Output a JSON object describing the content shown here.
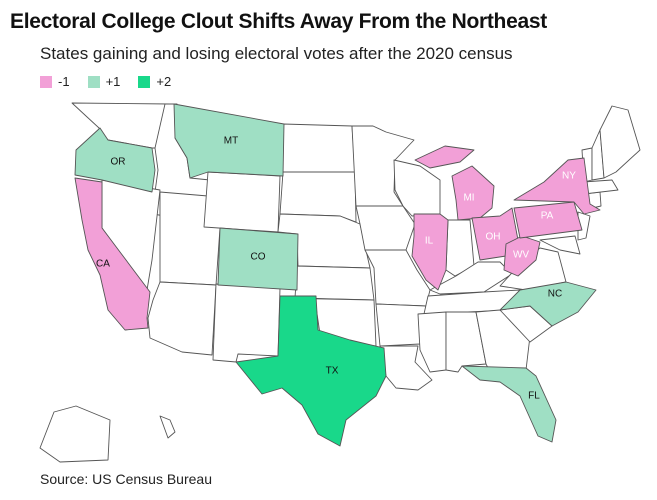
{
  "title": "Electoral College Clout Shifts Away From the Northeast",
  "subtitle": "States gaining and losing electoral votes after the 2020 census",
  "legend": [
    {
      "label": "-1",
      "color": "#f2a0d7"
    },
    {
      "label": "+1",
      "color": "#9fdfc4"
    },
    {
      "label": "+2",
      "color": "#19d88a"
    }
  ],
  "colors": {
    "minus1": "#f2a0d7",
    "plus1": "#9fdfc4",
    "plus2": "#19d88a",
    "neutral": "#ffffff",
    "border": "#555555"
  },
  "states": [
    {
      "abbr": "CA",
      "change": -1
    },
    {
      "abbr": "IL",
      "change": -1
    },
    {
      "abbr": "MI",
      "change": -1
    },
    {
      "abbr": "NY",
      "change": -1
    },
    {
      "abbr": "OH",
      "change": -1
    },
    {
      "abbr": "PA",
      "change": -1
    },
    {
      "abbr": "WV",
      "change": -1
    },
    {
      "abbr": "OR",
      "change": 1
    },
    {
      "abbr": "MT",
      "change": 1
    },
    {
      "abbr": "CO",
      "change": 1
    },
    {
      "abbr": "NC",
      "change": 1
    },
    {
      "abbr": "FL",
      "change": 1
    },
    {
      "abbr": "TX",
      "change": 2
    }
  ],
  "source": "Source: US Census Bureau"
}
